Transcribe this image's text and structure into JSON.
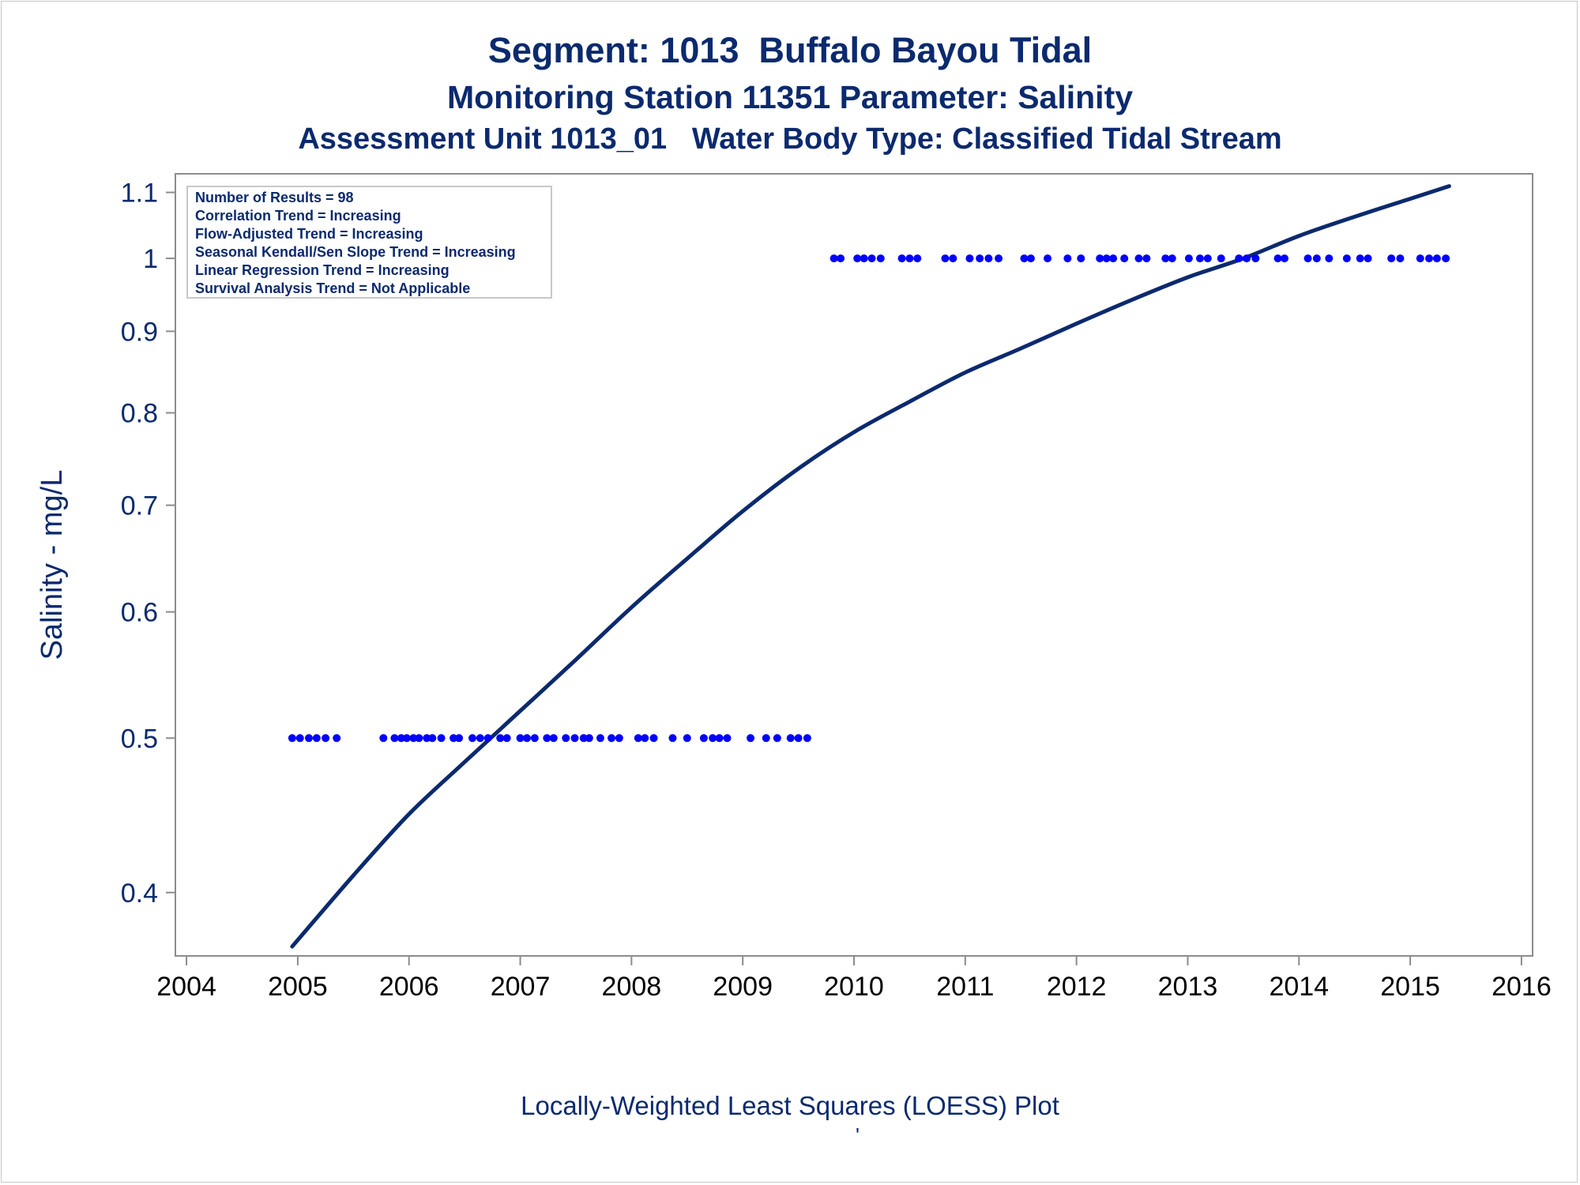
{
  "titles": {
    "line1": "Segment: 1013  Buffalo Bayou Tidal",
    "line2": "Monitoring Station 11351 Parameter: Salinity",
    "line3": "Assessment Unit 1013_01   Water Body Type: Classified Tidal Stream"
  },
  "footnote": "Locally-Weighted Least Squares (LOESS) Plot",
  "footmark": "'",
  "colors": {
    "title": "#0b2a6e",
    "curve": "#0b2a6e",
    "points": "#0000ff",
    "axis": "#8c8c8c",
    "frame": "#c8c8c8"
  },
  "chart_data": {
    "type": "scatter",
    "ylabel": "Salinity - mg/L",
    "xlabel": "",
    "y_scale": "log",
    "xlim": [
      2003.9,
      2016.1
    ],
    "ylim": [
      0.365,
      1.13
    ],
    "x_ticks": [
      2004,
      2005,
      2006,
      2007,
      2008,
      2009,
      2010,
      2011,
      2012,
      2013,
      2014,
      2015,
      2016
    ],
    "y_ticks": [
      0.4,
      0.5,
      0.6,
      0.7,
      0.8,
      0.9,
      1,
      1.1
    ],
    "grid": false,
    "inset": {
      "position": "top-left",
      "lines": [
        "Number of Results = 98",
        "Correlation Trend = Increasing",
        "Flow-Adjusted Trend = Increasing",
        "Seasonal Kendall/Sen Slope Trend = Increasing",
        "Linear Regression Trend = Increasing",
        "Survival Analysis Trend = Not Applicable"
      ]
    },
    "series": [
      {
        "type": "scatter",
        "points": [
          [
            2004.95,
            0.5
          ],
          [
            2005.02,
            0.5
          ],
          [
            2005.1,
            0.5
          ],
          [
            2005.17,
            0.5
          ],
          [
            2005.25,
            0.5
          ],
          [
            2005.35,
            0.5
          ],
          [
            2005.77,
            0.5
          ],
          [
            2005.87,
            0.5
          ],
          [
            2005.93,
            0.5
          ],
          [
            2005.98,
            0.5
          ],
          [
            2006.04,
            0.5
          ],
          [
            2006.09,
            0.5
          ],
          [
            2006.16,
            0.5
          ],
          [
            2006.21,
            0.5
          ],
          [
            2006.29,
            0.5
          ],
          [
            2006.4,
            0.5
          ],
          [
            2006.45,
            0.5
          ],
          [
            2006.57,
            0.5
          ],
          [
            2006.64,
            0.5
          ],
          [
            2006.71,
            0.5
          ],
          [
            2006.82,
            0.5
          ],
          [
            2006.88,
            0.5
          ],
          [
            2007.0,
            0.5
          ],
          [
            2007.06,
            0.5
          ],
          [
            2007.13,
            0.5
          ],
          [
            2007.24,
            0.5
          ],
          [
            2007.3,
            0.5
          ],
          [
            2007.41,
            0.5
          ],
          [
            2007.49,
            0.5
          ],
          [
            2007.57,
            0.5
          ],
          [
            2007.62,
            0.5
          ],
          [
            2007.72,
            0.5
          ],
          [
            2007.82,
            0.5
          ],
          [
            2007.89,
            0.5
          ],
          [
            2008.06,
            0.5
          ],
          [
            2008.12,
            0.5
          ],
          [
            2008.2,
            0.5
          ],
          [
            2008.37,
            0.5
          ],
          [
            2008.5,
            0.5
          ],
          [
            2008.65,
            0.5
          ],
          [
            2008.73,
            0.5
          ],
          [
            2008.79,
            0.5
          ],
          [
            2008.86,
            0.5
          ],
          [
            2009.07,
            0.5
          ],
          [
            2009.21,
            0.5
          ],
          [
            2009.31,
            0.5
          ],
          [
            2009.43,
            0.5
          ],
          [
            2009.5,
            0.5
          ],
          [
            2009.58,
            0.5
          ],
          [
            2009.82,
            1
          ],
          [
            2009.88,
            1
          ],
          [
            2010.03,
            1
          ],
          [
            2010.09,
            1
          ],
          [
            2010.16,
            1
          ],
          [
            2010.24,
            1
          ],
          [
            2010.43,
            1
          ],
          [
            2010.5,
            1
          ],
          [
            2010.57,
            1
          ],
          [
            2010.82,
            1
          ],
          [
            2010.89,
            1
          ],
          [
            2011.04,
            1
          ],
          [
            2011.13,
            1
          ],
          [
            2011.21,
            1
          ],
          [
            2011.3,
            1
          ],
          [
            2011.53,
            1
          ],
          [
            2011.59,
            1
          ],
          [
            2011.74,
            1
          ],
          [
            2011.92,
            1
          ],
          [
            2012.04,
            1
          ],
          [
            2012.21,
            1
          ],
          [
            2012.27,
            1
          ],
          [
            2012.33,
            1
          ],
          [
            2012.43,
            1
          ],
          [
            2012.56,
            1
          ],
          [
            2012.63,
            1
          ],
          [
            2012.8,
            1
          ],
          [
            2012.86,
            1
          ],
          [
            2013.01,
            1
          ],
          [
            2013.11,
            1
          ],
          [
            2013.18,
            1
          ],
          [
            2013.3,
            1
          ],
          [
            2013.46,
            1
          ],
          [
            2013.53,
            1
          ],
          [
            2013.61,
            1
          ],
          [
            2013.81,
            1
          ],
          [
            2013.87,
            1
          ],
          [
            2014.08,
            1
          ],
          [
            2014.16,
            1
          ],
          [
            2014.27,
            1
          ],
          [
            2014.43,
            1
          ],
          [
            2014.55,
            1
          ],
          [
            2014.62,
            1
          ],
          [
            2014.83,
            1
          ],
          [
            2014.91,
            1
          ],
          [
            2015.09,
            1
          ],
          [
            2015.17,
            1
          ],
          [
            2015.24,
            1
          ],
          [
            2015.32,
            1
          ]
        ]
      },
      {
        "type": "line",
        "points": [
          [
            2004.95,
            0.37
          ],
          [
            2005.5,
            0.41
          ],
          [
            2006.0,
            0.448
          ],
          [
            2006.5,
            0.483
          ],
          [
            2007.0,
            0.52
          ],
          [
            2007.5,
            0.56
          ],
          [
            2008.0,
            0.604
          ],
          [
            2008.5,
            0.648
          ],
          [
            2009.0,
            0.694
          ],
          [
            2009.5,
            0.738
          ],
          [
            2010.0,
            0.778
          ],
          [
            2010.5,
            0.813
          ],
          [
            2011.0,
            0.848
          ],
          [
            2011.5,
            0.878
          ],
          [
            2012.0,
            0.91
          ],
          [
            2012.5,
            0.942
          ],
          [
            2013.0,
            0.973
          ],
          [
            2013.5,
            1.0
          ],
          [
            2014.0,
            1.033
          ],
          [
            2014.5,
            1.062
          ],
          [
            2015.0,
            1.09
          ],
          [
            2015.35,
            1.11
          ]
        ]
      }
    ]
  }
}
